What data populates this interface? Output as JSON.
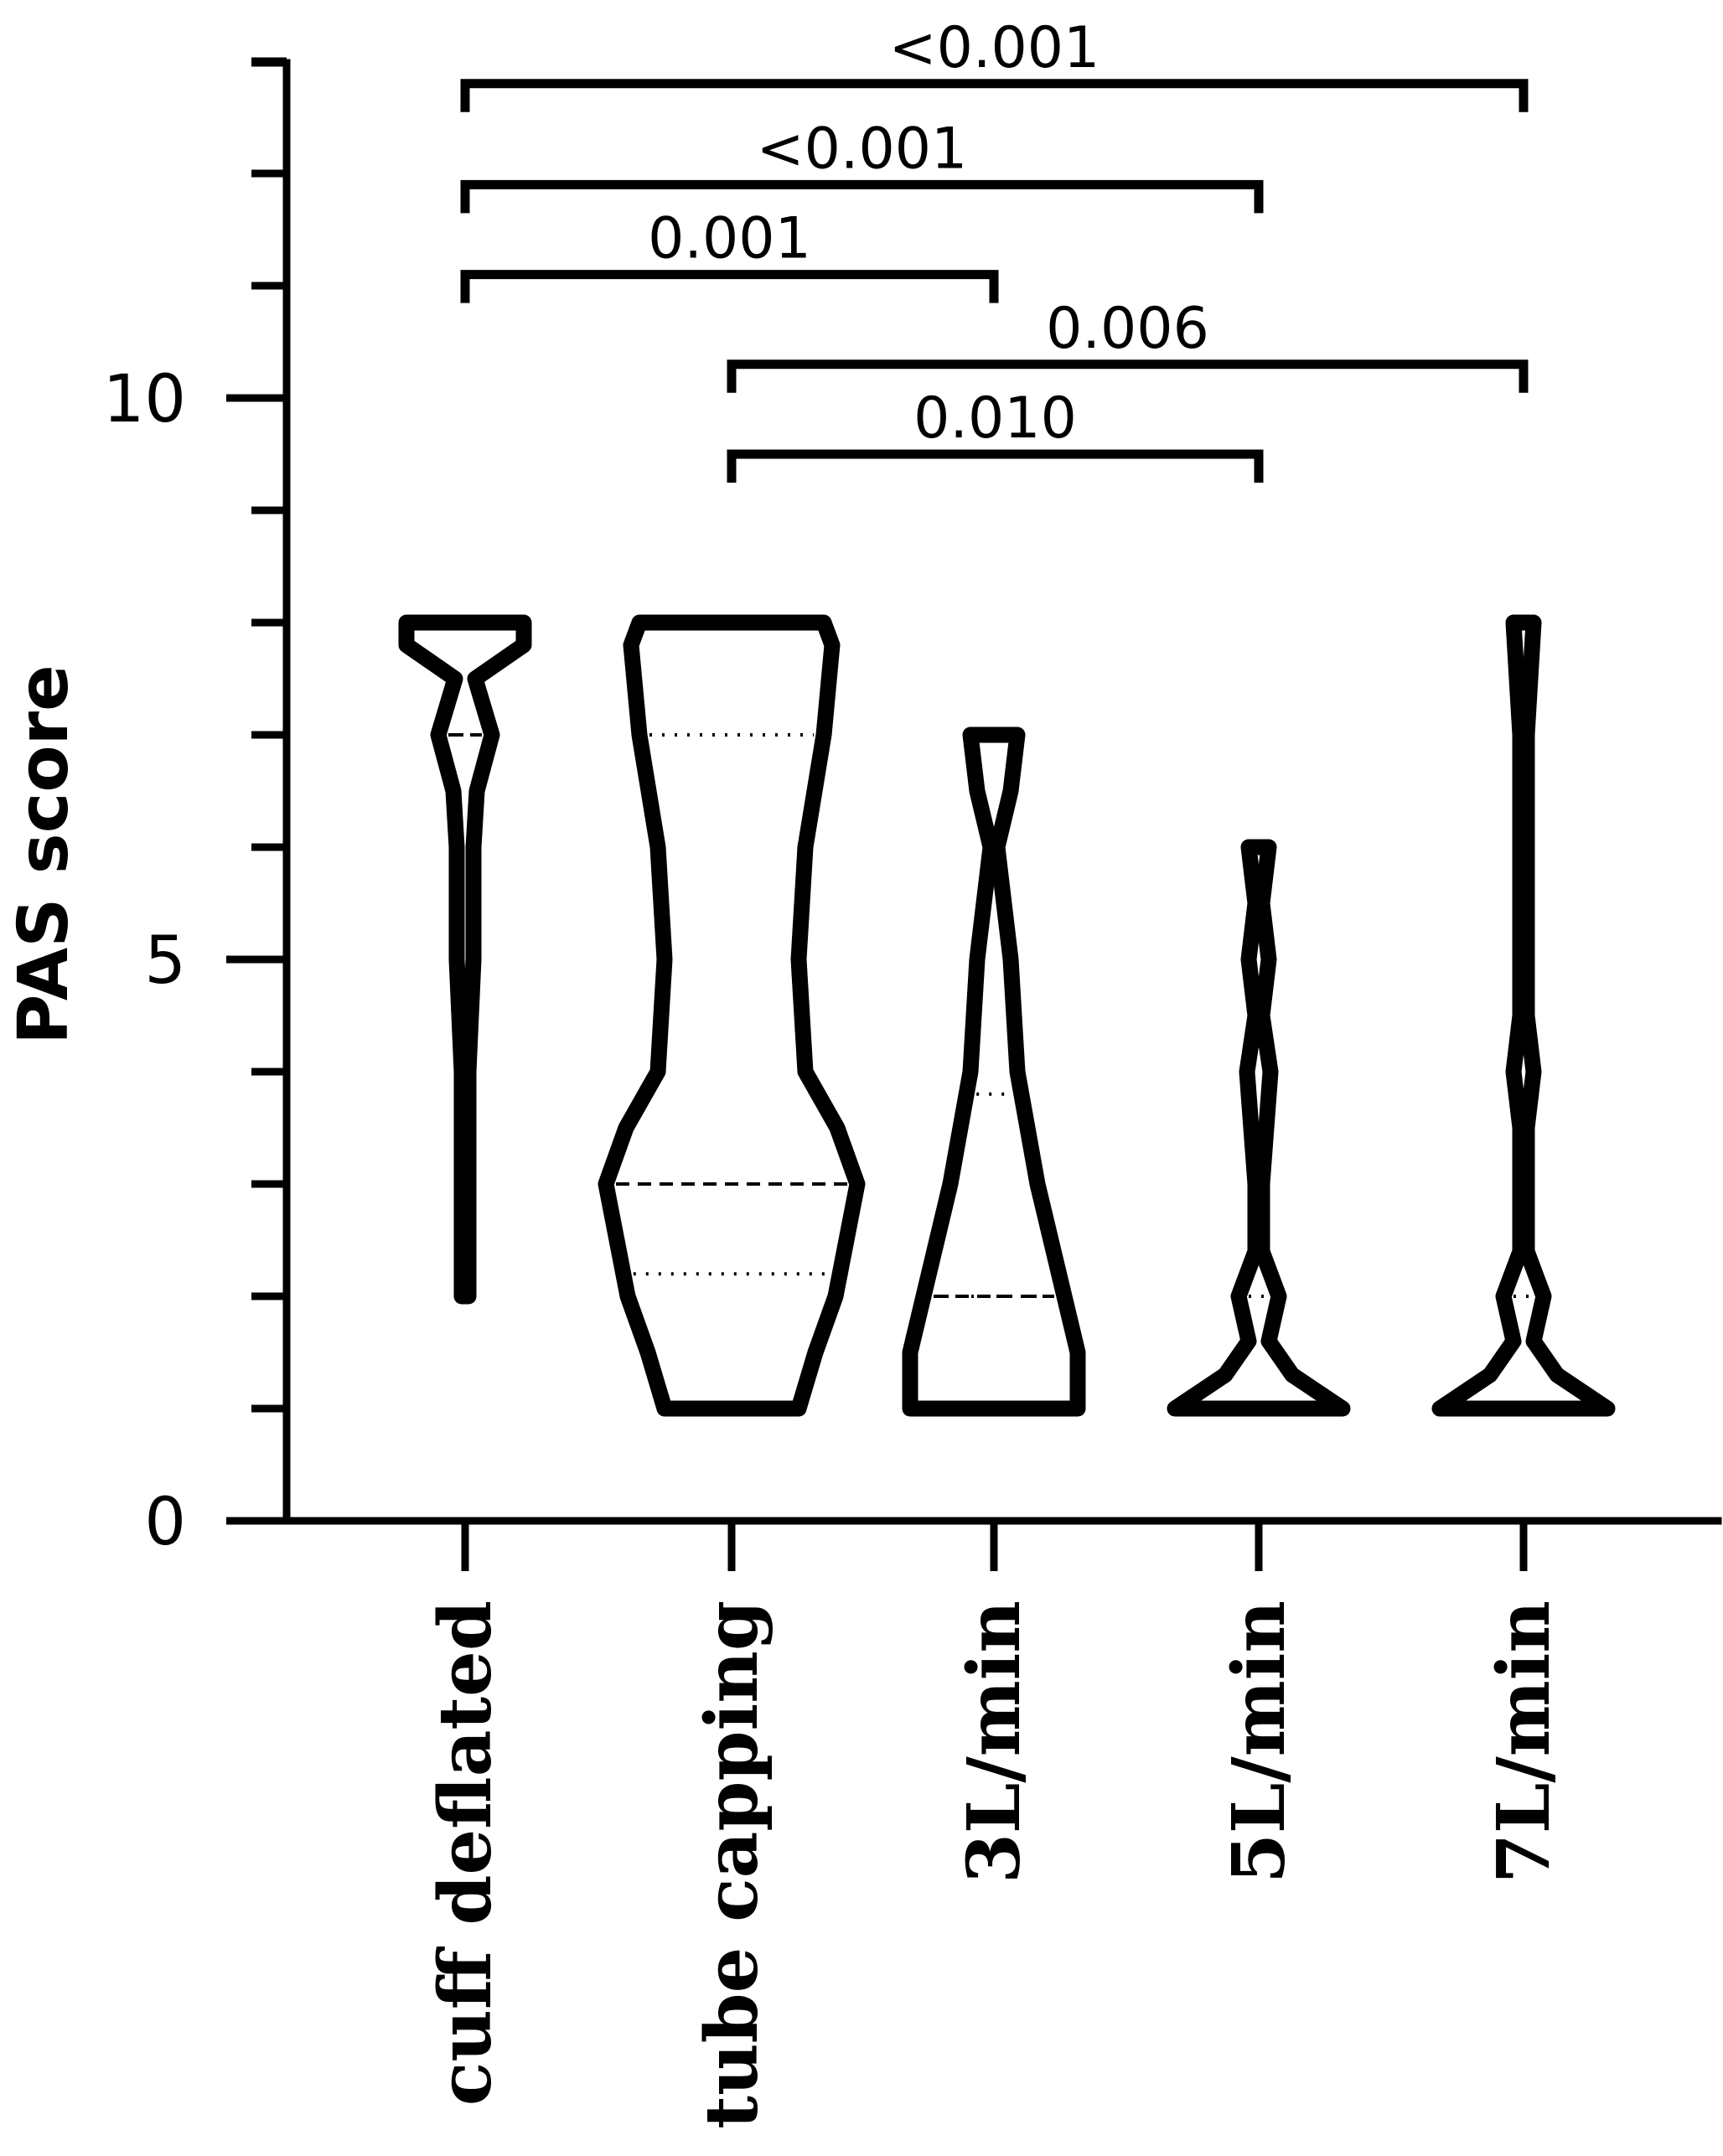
{
  "chart_data": {
    "type": "violin",
    "title": "",
    "xlabel": "",
    "ylabel": "PAS score",
    "ylim": [
      0,
      10
    ],
    "yticks": [
      0,
      5,
      10
    ],
    "yticks_minor": [
      1,
      2,
      3,
      4,
      6,
      7,
      8,
      9,
      11,
      12,
      13
    ],
    "grid": false,
    "legend": "none",
    "categories": [
      "cuff deflated",
      "tube capping",
      "3L/min",
      "5L/min",
      "7L/min"
    ],
    "violins": [
      {
        "category": "cuff deflated",
        "min": 2,
        "max": 8,
        "median": 7,
        "q1": 7,
        "q3": 7,
        "density": [
          [
            2,
            0.02
          ],
          [
            3,
            0.02
          ],
          [
            4,
            0.02
          ],
          [
            5,
            0.05
          ],
          [
            6,
            0.05
          ],
          [
            6.5,
            0.07
          ],
          [
            7,
            0.16
          ],
          [
            7.5,
            0.06
          ],
          [
            7.8,
            0.35
          ],
          [
            8,
            0.35
          ]
        ]
      },
      {
        "category": "tube capping",
        "min": 1,
        "max": 8,
        "median": 3,
        "q1": 2.2,
        "q3": 7,
        "density": [
          [
            1,
            0.4
          ],
          [
            1.5,
            0.5
          ],
          [
            2,
            0.62
          ],
          [
            3,
            0.75
          ],
          [
            3.5,
            0.63
          ],
          [
            4,
            0.44
          ],
          [
            5,
            0.4
          ],
          [
            6,
            0.44
          ],
          [
            7,
            0.55
          ],
          [
            7.8,
            0.6
          ],
          [
            8,
            0.55
          ]
        ]
      },
      {
        "category": "3L/min",
        "min": 1,
        "max": 7,
        "median": 2,
        "q1": 2,
        "q3": 3.8,
        "density": [
          [
            1,
            0.5
          ],
          [
            1.5,
            0.5
          ],
          [
            2,
            0.42
          ],
          [
            3,
            0.26
          ],
          [
            4,
            0.14
          ],
          [
            5,
            0.1
          ],
          [
            6,
            0.02
          ],
          [
            6.5,
            0.1
          ],
          [
            7,
            0.14
          ]
        ]
      },
      {
        "category": "5L/min",
        "min": 1,
        "max": 6,
        "median": 1,
        "q1": 1,
        "q3": 2,
        "density": [
          [
            1,
            0.5
          ],
          [
            1.3,
            0.2
          ],
          [
            1.6,
            0.06
          ],
          [
            2,
            0.12
          ],
          [
            2.4,
            0.02
          ],
          [
            3,
            0.02
          ],
          [
            4,
            0.07
          ],
          [
            4.5,
            0.02
          ],
          [
            5,
            0.06
          ],
          [
            5.5,
            0.02
          ],
          [
            6,
            0.06
          ]
        ]
      },
      {
        "category": "7L/min",
        "min": 1,
        "max": 8,
        "median": 1,
        "q1": 1,
        "q3": 2,
        "density": [
          [
            1,
            0.5
          ],
          [
            1.3,
            0.2
          ],
          [
            1.6,
            0.06
          ],
          [
            2,
            0.12
          ],
          [
            2.4,
            0.02
          ],
          [
            3.5,
            0.02
          ],
          [
            4,
            0.06
          ],
          [
            4.5,
            0.02
          ],
          [
            7,
            0.02
          ],
          [
            8,
            0.06
          ]
        ]
      }
    ],
    "comparisons": [
      {
        "from": "cuff deflated",
        "to": "7L/min",
        "label": "<0.001",
        "level": 12.8
      },
      {
        "from": "cuff deflated",
        "to": "5L/min",
        "label": "<0.001",
        "level": 11.9
      },
      {
        "from": "cuff deflated",
        "to": "3L/min",
        "label": "0.001",
        "level": 11.1
      },
      {
        "from": "tube capping",
        "to": "7L/min",
        "label": "0.006",
        "level": 10.3
      },
      {
        "from": "tube capping",
        "to": "5L/min",
        "label": "0.010",
        "level": 9.5
      }
    ]
  }
}
